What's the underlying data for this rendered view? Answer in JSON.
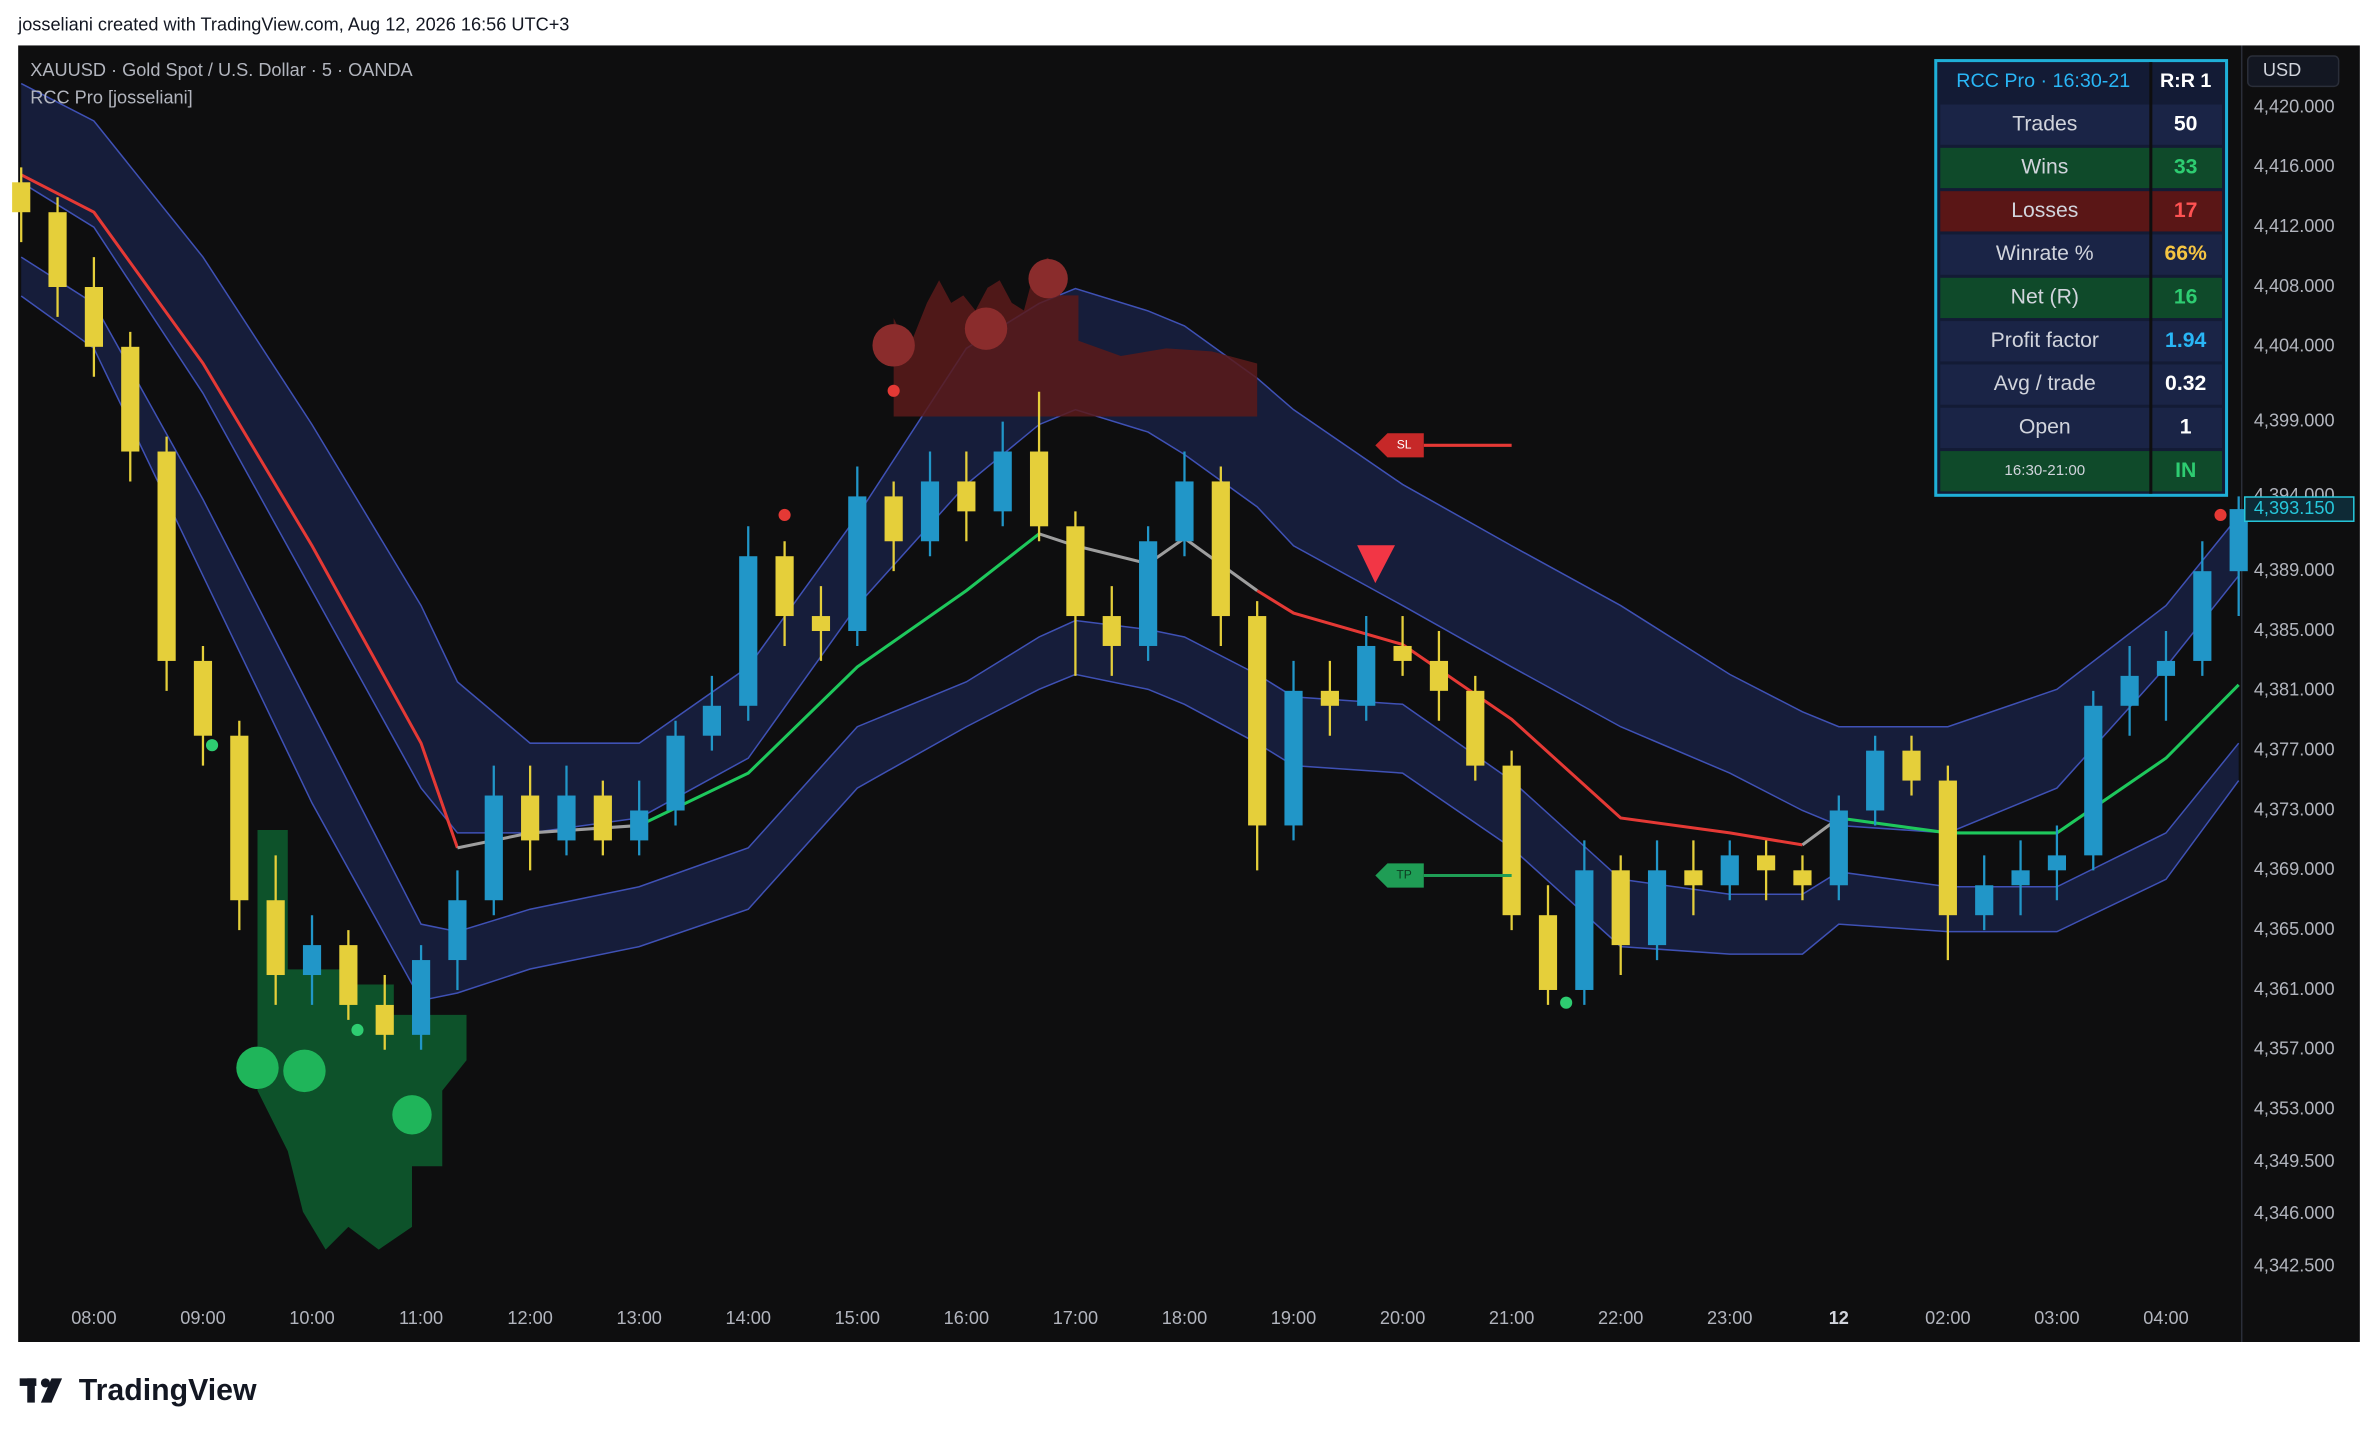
{
  "header": {
    "attribution": "josseliani created with TradingView.com, Aug 12, 2026 16:56 UTC+3"
  },
  "chart_data": {
    "type": "candlestick",
    "symbol": "XAUUSD · Gold Spot / U.S. Dollar · 5 · OANDA",
    "indicator": "RCC Pro [josseliani]",
    "currency": "USD",
    "last_price_label": "4,393.150",
    "up_color": "#2196c8",
    "down_color": "#e5cf3a",
    "x": [
      "07:20",
      "07:40",
      "08:00",
      "08:20",
      "08:40",
      "09:00",
      "09:20",
      "09:40",
      "10:00",
      "10:20",
      "10:40",
      "11:00",
      "11:20",
      "11:40",
      "12:00",
      "12:20",
      "12:40",
      "13:00",
      "13:20",
      "13:40",
      "14:00",
      "14:20",
      "14:40",
      "15:00",
      "15:20",
      "15:40",
      "16:00",
      "16:20",
      "16:40",
      "17:00",
      "17:20",
      "17:40",
      "18:00",
      "18:20",
      "18:40",
      "19:00",
      "19:20",
      "19:40",
      "20:00",
      "20:20",
      "20:40",
      "21:00",
      "21:20",
      "21:40",
      "22:00",
      "22:20",
      "22:40",
      "23:00",
      "23:20",
      "23:40",
      "01:00",
      "01:20",
      "01:40",
      "02:00",
      "02:20",
      "02:40",
      "03:00",
      "03:20",
      "03:40",
      "04:00",
      "04:20",
      "04:40"
    ],
    "open": [
      4415,
      4413,
      4408,
      4404,
      4397,
      4383,
      4378,
      4367,
      4362,
      4364,
      4360,
      4358,
      4363,
      4367,
      4374,
      4371,
      4374,
      4371,
      4373,
      4378,
      4380,
      4390,
      4386,
      4385,
      4394,
      4391,
      4395,
      4393,
      4397,
      4392,
      4386,
      4384,
      4391,
      4395,
      4386,
      4372,
      4381,
      4380,
      4384,
      4383,
      4381,
      4376,
      4366,
      4361,
      4369,
      4364,
      4369,
      4368,
      4370,
      4369,
      4368,
      4373,
      4377,
      4375,
      4366,
      4368,
      4369,
      4370,
      4380,
      4382,
      4383,
      4389
    ],
    "high": [
      4416,
      4414,
      4410,
      4405,
      4398,
      4384,
      4379,
      4370,
      4366,
      4365,
      4362,
      4364,
      4369,
      4376,
      4376,
      4376,
      4375,
      4375,
      4379,
      4382,
      4392,
      4391,
      4388,
      4396,
      4395,
      4397,
      4397,
      4399,
      4401,
      4393,
      4388,
      4392,
      4397,
      4396,
      4387,
      4383,
      4383,
      4386,
      4386,
      4385,
      4382,
      4377,
      4368,
      4371,
      4370,
      4371,
      4371,
      4371,
      4371,
      4370,
      4374,
      4378,
      4378,
      4376,
      4370,
      4371,
      4372,
      4381,
      4384,
      4385,
      4391,
      4394
    ],
    "low": [
      4411,
      4406,
      4402,
      4395,
      4381,
      4376,
      4365,
      4360,
      4360,
      4359,
      4357,
      4357,
      4361,
      4366,
      4369,
      4370,
      4370,
      4370,
      4372,
      4377,
      4379,
      4384,
      4383,
      4384,
      4389,
      4390,
      4391,
      4392,
      4391,
      4382,
      4382,
      4383,
      4390,
      4384,
      4369,
      4371,
      4378,
      4379,
      4382,
      4379,
      4375,
      4365,
      4360,
      4360,
      4362,
      4363,
      4366,
      4367,
      4367,
      4367,
      4367,
      4372,
      4374,
      4363,
      4365,
      4366,
      4367,
      4369,
      4378,
      4379,
      4382,
      4386
    ],
    "close": [
      4413,
      4408,
      4404,
      4397,
      4383,
      4378,
      4367,
      4362,
      4364,
      4360,
      4358,
      4363,
      4367,
      4374,
      4371,
      4374,
      4371,
      4373,
      4378,
      4380,
      4390,
      4386,
      4385,
      4394,
      4391,
      4395,
      4393,
      4397,
      4392,
      4386,
      4384,
      4391,
      4395,
      4386,
      4372,
      4381,
      4380,
      4384,
      4383,
      4381,
      4376,
      4366,
      4361,
      4369,
      4364,
      4369,
      4368,
      4370,
      4369,
      4368,
      4373,
      4377,
      4375,
      4366,
      4368,
      4369,
      4370,
      4380,
      4382,
      4383,
      4389,
      4393.15
    ],
    "band_x": [
      "07:20",
      "08:00",
      "09:00",
      "10:00",
      "11:00",
      "11:20",
      "12:00",
      "13:00",
      "14:00",
      "15:00",
      "16:00",
      "16:40",
      "17:00",
      "17:40",
      "18:00",
      "18:40",
      "19:00",
      "20:00",
      "21:00",
      "22:00",
      "23:00",
      "23:40",
      "01:00",
      "02:00",
      "03:00",
      "04:00",
      "04:40"
    ],
    "band_fill": "#161d3a",
    "bands": [
      {
        "color": "#3f51b5",
        "values": [
          4421.6,
          4419.1,
          4410.0,
          4398.8,
          4386.7,
          4381.6,
          4377.5,
          4377.5,
          4382.6,
          4392.7,
          4403.9,
          4406.9,
          4407.9,
          4406.4,
          4405.4,
          4401.9,
          4399.8,
          4394.8,
          4390.7,
          4386.7,
          4382.1,
          4379.6,
          4378.6,
          4378.6,
          4381.1,
          4386.7,
          4392.7
        ]
      },
      {
        "color": "#3f51b5",
        "values": [
          4415.0,
          4412.0,
          4400.9,
          4387.7,
          4374.5,
          4371.5,
          4371.5,
          4372.5,
          4376.5,
          4386.7,
          4394.8,
          4398.8,
          4399.8,
          4398.3,
          4396.8,
          4393.3,
          4390.7,
          4386.7,
          4382.6,
          4378.6,
          4375.5,
          4373.0,
          4372.0,
          4371.5,
          4374.5,
          4382.6,
          4388.7
        ]
      },
      {
        "color": "#3f51b5",
        "values": [
          4410.0,
          4406.9,
          4393.8,
          4379.6,
          4365.4,
          4364.9,
          4366.4,
          4367.9,
          4370.5,
          4378.6,
          4381.6,
          4384.6,
          4385.7,
          4385.1,
          4384.6,
          4382.1,
          4380.6,
          4380.1,
          4375.0,
          4368.4,
          4367.4,
          4367.4,
          4368.9,
          4367.9,
          4367.9,
          4371.5,
          4377.5
        ]
      },
      {
        "color": "#3f51b5",
        "values": [
          4407.4,
          4403.9,
          4388.7,
          4373.5,
          4360.3,
          4360.8,
          4362.4,
          4363.9,
          4366.4,
          4374.5,
          4378.6,
          4381.1,
          4382.1,
          4381.1,
          4380.1,
          4377.5,
          4376.0,
          4375.5,
          4370.5,
          4363.9,
          4363.4,
          4363.4,
          4365.4,
          4364.9,
          4364.9,
          4368.4,
          4375.0
        ]
      }
    ],
    "midline": [
      {
        "color": "#e53935",
        "values": [
          4415.5,
          4413.0,
          4402.9,
          4390.7,
          4377.5,
          4370.5,
          null,
          null,
          null,
          null,
          null,
          null,
          null,
          null,
          null,
          4387.7,
          4386.2,
          4384.1,
          4379.1,
          4372.5,
          4371.5,
          4370.7,
          null,
          null,
          null,
          null,
          null
        ]
      },
      {
        "color": "#9e9e9e",
        "values": [
          null,
          null,
          null,
          null,
          null,
          4370.5,
          4371.5,
          4372.0,
          null,
          null,
          null,
          4391.5,
          4390.7,
          4389.5,
          4391.2,
          4387.7,
          null,
          null,
          null,
          null,
          null,
          4370.7,
          4372.5,
          null,
          null,
          null,
          null
        ]
      },
      {
        "color": "#1ec85c",
        "values": [
          null,
          null,
          null,
          null,
          null,
          null,
          null,
          4372.0,
          4375.5,
          4382.6,
          4387.7,
          4391.5,
          null,
          null,
          null,
          null,
          null,
          null,
          null,
          null,
          null,
          null,
          4372.5,
          4371.5,
          4371.5,
          4376.5,
          4381.4
        ]
      }
    ],
    "ylim": [
      4340.3,
      4424.15
    ],
    "yticks": [
      {
        "value": 4420,
        "label": "4,420.000"
      },
      {
        "value": 4416,
        "label": "4,416.000"
      },
      {
        "value": 4412,
        "label": "4,412.000"
      },
      {
        "value": 4408,
        "label": "4,408.000"
      },
      {
        "value": 4404,
        "label": "4,404.000"
      },
      {
        "value": 4399,
        "label": "4,399.000"
      },
      {
        "value": 4394,
        "label": "4,394.000"
      },
      {
        "value": 4389,
        "label": "4,389.000"
      },
      {
        "value": 4385,
        "label": "4,385.000"
      },
      {
        "value": 4381,
        "label": "4,381.000"
      },
      {
        "value": 4377,
        "label": "4,377.000"
      },
      {
        "value": 4373,
        "label": "4,373.000"
      },
      {
        "value": 4369,
        "label": "4,369.000"
      },
      {
        "value": 4365,
        "label": "4,365.000"
      },
      {
        "value": 4361,
        "label": "4,361.000"
      },
      {
        "value": 4357,
        "label": "4,357.000"
      },
      {
        "value": 4353,
        "label": "4,353.000"
      },
      {
        "value": 4349.5,
        "label": "4,349.500"
      },
      {
        "value": 4346,
        "label": "4,346.000"
      },
      {
        "value": 4342.5,
        "label": "4,342.500"
      }
    ],
    "xticks": [
      "08:00",
      "09:00",
      "10:00",
      "11:00",
      "12:00",
      "13:00",
      "14:00",
      "15:00",
      "16:00",
      "17:00",
      "18:00",
      "19:00",
      "20:00",
      "21:00",
      "22:00",
      "23:00",
      {
        "value": "01:00",
        "label": "12"
      },
      "02:00",
      "03:00",
      "04:00"
    ]
  },
  "markers": {
    "sl": "SL",
    "tp": "TP"
  },
  "stats_table": {
    "title": "RCC Pro · 16:30-21",
    "rr": "R:R 1",
    "rows": [
      [
        "Trades",
        "50"
      ],
      [
        "Wins",
        "33"
      ],
      [
        "Losses",
        "17"
      ],
      [
        "Winrate %",
        "66%"
      ],
      [
        "Net (R)",
        "16"
      ],
      [
        "Profit factor",
        "1.94"
      ],
      [
        "Avg / trade",
        "0.32"
      ],
      [
        "Open",
        "1"
      ],
      [
        "16:30-21:00",
        "IN"
      ]
    ]
  },
  "footer": {
    "brand": "TradingView"
  }
}
